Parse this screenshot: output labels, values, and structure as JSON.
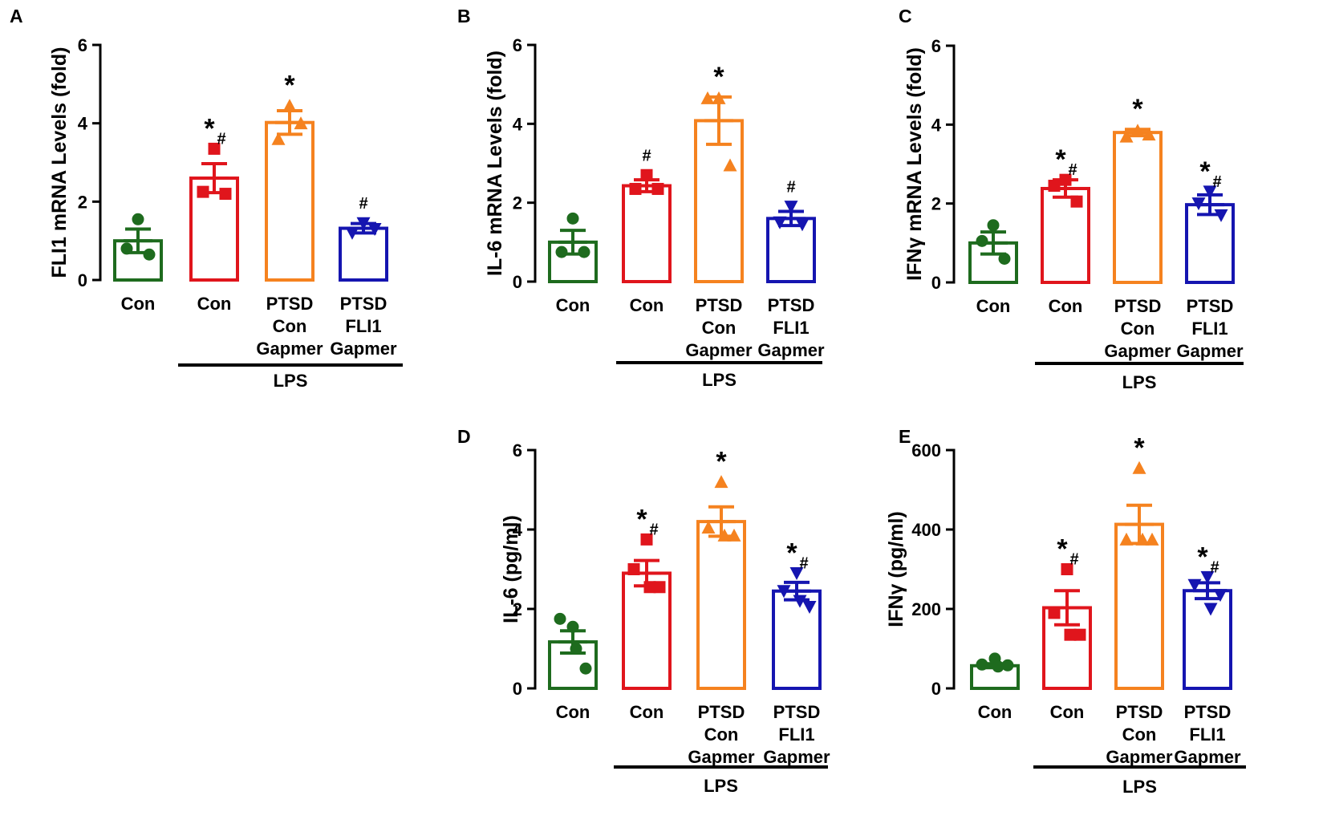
{
  "chart_data": [
    {
      "panel": "A",
      "type": "bar",
      "ylabel": "FLI1 mRNA Levels (fold)",
      "ylim": [
        0,
        6
      ],
      "yticks": [
        "0",
        "2",
        "4",
        "6"
      ],
      "categories": [
        [
          "Con"
        ],
        [
          "Con"
        ],
        [
          "PTSD",
          "Con",
          "Gapmer"
        ],
        [
          "PTSD",
          "FLI1",
          "Gapmer"
        ]
      ],
      "group_label": "LPS",
      "values": [
        1.0,
        2.6,
        4.02,
        1.32
      ],
      "errors": [
        0.3,
        0.37,
        0.3,
        0.12
      ],
      "points": [
        [
          1.55,
          0.8,
          0.65
        ],
        [
          3.35,
          2.25,
          2.2
        ],
        [
          4.45,
          3.6,
          4.0
        ],
        [
          1.45,
          1.2,
          1.3
        ]
      ],
      "significance": [
        "",
        "*#",
        "*",
        "#"
      ]
    },
    {
      "panel": "B",
      "type": "bar",
      "ylabel": "IL-6 mRNA Levels (fold)",
      "ylim": [
        0,
        6
      ],
      "yticks": [
        "0",
        "2",
        "4",
        "6"
      ],
      "categories": [
        [
          "Con"
        ],
        [
          "Con"
        ],
        [
          "PTSD",
          "Con",
          "Gapmer"
        ],
        [
          "PTSD",
          "FLI1",
          "Gapmer"
        ]
      ],
      "group_label": "LPS",
      "values": [
        1.0,
        2.43,
        4.08,
        1.6
      ],
      "errors": [
        0.3,
        0.15,
        0.6,
        0.18
      ],
      "points": [
        [
          1.6,
          0.75,
          0.75
        ],
        [
          2.7,
          2.35,
          2.35
        ],
        [
          4.65,
          4.65,
          2.95
        ],
        [
          1.9,
          1.5,
          1.45
        ]
      ],
      "significance": [
        "",
        "#",
        "*",
        "#"
      ]
    },
    {
      "panel": "C",
      "type": "bar",
      "ylabel": "IFNγ mRNA Levels (fold)",
      "ylim": [
        0,
        6
      ],
      "yticks": [
        "0",
        "2",
        "4",
        "6"
      ],
      "categories": [
        [
          "Con"
        ],
        [
          "Con"
        ],
        [
          "PTSD",
          "Con",
          "Gapmer"
        ],
        [
          "PTSD",
          "FLI1",
          "Gapmer"
        ]
      ],
      "group_label": "LPS",
      "values": [
        1.0,
        2.38,
        3.8,
        1.97
      ],
      "errors": [
        0.28,
        0.22,
        0.08,
        0.25
      ],
      "points": [
        [
          1.45,
          1.05,
          0.6
        ],
        [
          2.6,
          2.45,
          2.05
        ],
        [
          3.85,
          3.7,
          3.75
        ],
        [
          2.3,
          2.0,
          1.7
        ]
      ],
      "significance": [
        "",
        "*#",
        "*",
        "*#"
      ]
    },
    {
      "panel": "D",
      "type": "bar",
      "ylabel": "IL-6 (pg/ml)",
      "ylim": [
        0,
        6
      ],
      "yticks": [
        "0",
        "2",
        "4",
        "6"
      ],
      "categories": [
        [
          "Con"
        ],
        [
          "Con"
        ],
        [
          "PTSD",
          "Con",
          "Gapmer"
        ],
        [
          "PTSD",
          "FLI1",
          "Gapmer"
        ]
      ],
      "group_label": "LPS",
      "values": [
        1.17,
        2.9,
        4.2,
        2.45
      ],
      "errors": [
        0.28,
        0.32,
        0.37,
        0.22
      ],
      "points": [
        [
          1.55,
          1.75,
          0.5,
          1.0
        ],
        [
          3.75,
          3.0,
          2.55,
          2.55
        ],
        [
          5.2,
          4.05,
          3.85,
          3.85
        ],
        [
          2.9,
          2.45,
          2.05,
          2.2
        ]
      ],
      "significance": [
        "",
        "*#",
        "*",
        "*#"
      ]
    },
    {
      "panel": "E",
      "type": "bar",
      "ylabel": "IFNγ (pg/ml)",
      "ylim": [
        0,
        600
      ],
      "yticks": [
        "0",
        "200",
        "400",
        "600"
      ],
      "categories": [
        [
          "Con"
        ],
        [
          "Con"
        ],
        [
          "PTSD",
          "Con",
          "Gapmer"
        ],
        [
          "PTSD",
          "FLI1",
          "Gapmer"
        ]
      ],
      "group_label": "LPS",
      "values": [
        57,
        203,
        413,
        246
      ],
      "errors": [
        5,
        43,
        48,
        20
      ],
      "points": [
        [
          75,
          60,
          58,
          55
        ],
        [
          300,
          190,
          135,
          135
        ],
        [
          555,
          375,
          375,
          375
        ],
        [
          280,
          260,
          235,
          200
        ]
      ],
      "significance": [
        "",
        "*#",
        "*",
        "*#"
      ]
    }
  ],
  "colors": [
    "#1e6b1e",
    "#e0151c",
    "#f5821f",
    "#1515b0"
  ]
}
